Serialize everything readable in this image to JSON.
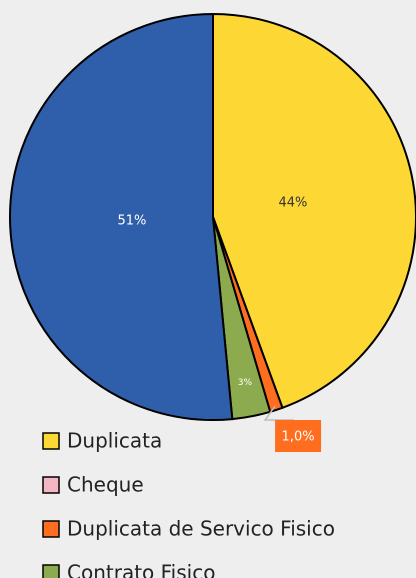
{
  "chart_data": {
    "type": "pie",
    "categories": [
      "Duplicata",
      "Cheque",
      "Duplicata de Servico Fisico",
      "Contrato Fisico",
      null
    ],
    "values": [
      44,
      0,
      1.0,
      3,
      51
    ],
    "value_labels": [
      "44%",
      null,
      "1,0%",
      "3%",
      "51%"
    ],
    "colors": [
      "#fdd835",
      "#f4b6c2",
      "#ff6d1f",
      "#8bab4e",
      "#2f5eaa"
    ]
  }
}
